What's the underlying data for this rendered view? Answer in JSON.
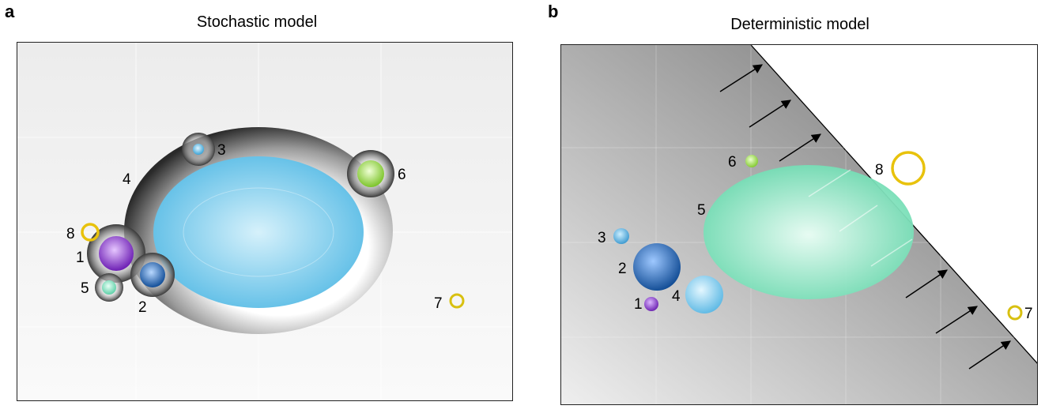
{
  "panel_a": {
    "letter": "a",
    "title": "Stochastic model",
    "labels": [
      "1",
      "2",
      "3",
      "4",
      "5",
      "6",
      "7",
      "8"
    ]
  },
  "panel_b": {
    "letter": "b",
    "title": "Deterministic model",
    "labels": [
      "1",
      "2",
      "3",
      "4",
      "5",
      "6",
      "7",
      "8"
    ]
  },
  "colors": {
    "sky_blue": "#5bbde6",
    "purple": "#7b2cc0",
    "dark_blue": "#1c62b0",
    "mint": "#7fe0bf",
    "lime": "#8cd23a",
    "gold": "#e8c20c",
    "grey_halo": "#555555"
  }
}
